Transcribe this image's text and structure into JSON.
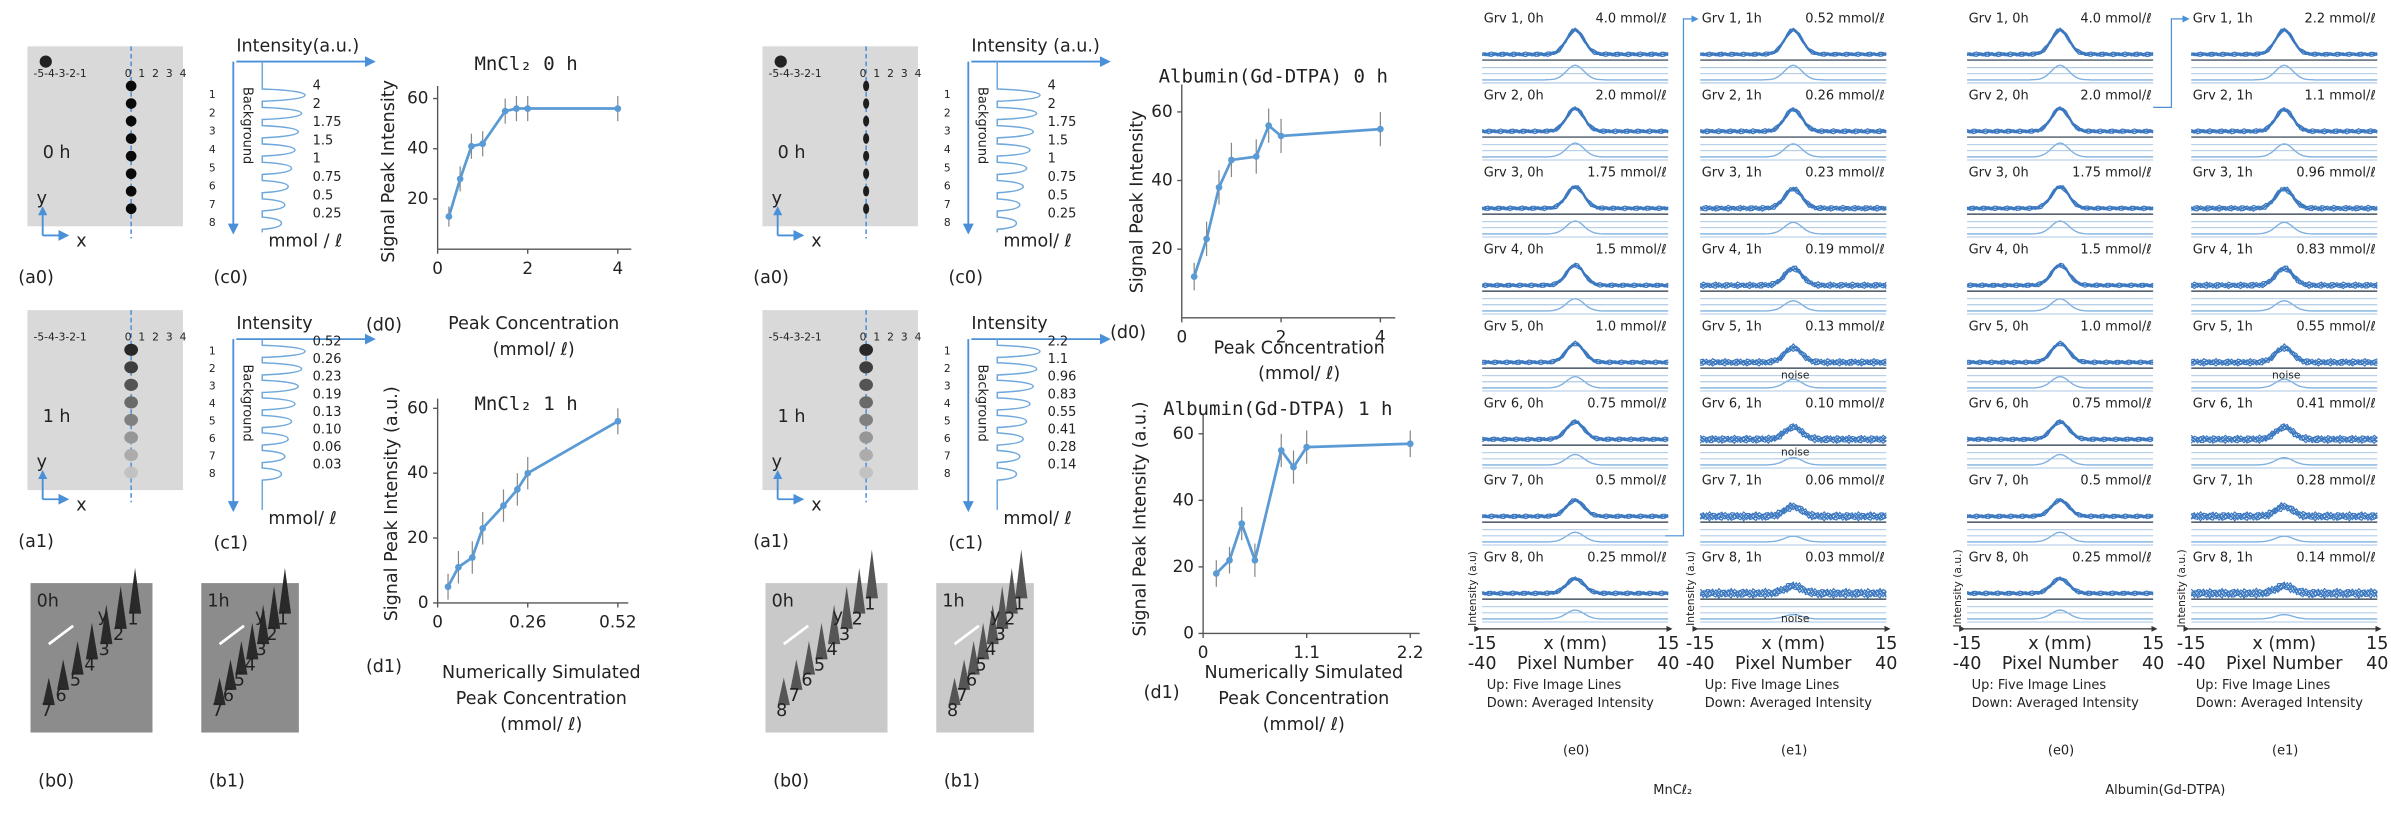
{
  "chart_data": [
    {
      "type": "line",
      "title": "MnCl₂  0 h",
      "panel": "(d0)",
      "ylabel": "Signal Peak Intensity",
      "xlabel": [
        "Peak Concentration",
        "(mmol/ ℓ)"
      ],
      "x": [
        0.25,
        0.5,
        0.75,
        1,
        1.5,
        1.75,
        2,
        4
      ],
      "values": [
        13,
        28,
        41,
        42,
        55,
        56,
        56,
        56
      ],
      "errors": [
        4,
        5,
        5,
        5,
        5,
        5,
        5,
        5
      ],
      "color": "#5b9bd5",
      "xlim": [
        0,
        4.3
      ],
      "ylim": [
        0,
        65
      ],
      "xticks": [
        0,
        2,
        4
      ],
      "yticks": [
        20,
        40,
        60
      ]
    },
    {
      "type": "line",
      "title": "MnCl₂ 1 h",
      "panel": "(d1)",
      "ylabel": "Signal Peak Intensity (a.u.)",
      "xlabel": [
        "Numerically Simulated",
        "Peak Concentration",
        "(mmol/ ℓ)"
      ],
      "x": [
        0.03,
        0.06,
        0.1,
        0.13,
        0.19,
        0.23,
        0.26,
        0.52
      ],
      "values": [
        5,
        11,
        14,
        23,
        30,
        35,
        40,
        56
      ],
      "errors": [
        4,
        5,
        5,
        5,
        5,
        5,
        5,
        4
      ],
      "color": "#5b9bd5",
      "xlim": [
        0,
        0.55
      ],
      "ylim": [
        0,
        63
      ],
      "xticks": [
        0,
        0.26,
        0.52
      ],
      "yticks": [
        0,
        20,
        40,
        60
      ]
    },
    {
      "type": "line",
      "title": "Albumin(Gd-DTPA) 0 h",
      "panel": "(d0)",
      "ylabel": "Signal Peak Intensity",
      "xlabel": [
        "Peak Concentration",
        "(mmol/ ℓ)"
      ],
      "x": [
        0.25,
        0.5,
        0.75,
        1,
        1.5,
        1.75,
        2,
        4
      ],
      "values": [
        12,
        23,
        38,
        46,
        47,
        56,
        53,
        55
      ],
      "errors": [
        4,
        5,
        5,
        5,
        5,
        5,
        5,
        5
      ],
      "color": "#5b9bd5",
      "xlim": [
        0,
        4.3
      ],
      "ylim": [
        0,
        68
      ],
      "xticks": [
        0,
        2,
        4
      ],
      "yticks": [
        20,
        40,
        60
      ]
    },
    {
      "type": "line",
      "title": "Albumin(Gd-DTPA) 1 h",
      "panel": "(d1)",
      "ylabel": "Signal Peak Intensity (a.u.)",
      "xlabel": [
        "Numerically Simulated",
        "Peak Concentration",
        "(mmol/ ℓ)"
      ],
      "x": [
        0.14,
        0.28,
        0.41,
        0.55,
        0.83,
        0.96,
        1.1,
        2.2
      ],
      "values": [
        18,
        22,
        33,
        22,
        55,
        50,
        56,
        57
      ],
      "errors": [
        4,
        4,
        5,
        5,
        5,
        5,
        5,
        4
      ],
      "color": "#5b9bd5",
      "xlim": [
        0,
        2.3
      ],
      "ylim": [
        0,
        66
      ],
      "xticks": [
        0,
        1.1,
        2.2
      ],
      "yticks": [
        0,
        20,
        40,
        60
      ]
    }
  ],
  "figures": [
    {
      "a": [
        {
          "ruler_left": "-5-4-3-2-1",
          "ruler_right": [
            "0",
            "1",
            "2",
            "3",
            "4"
          ],
          "time": "0  h",
          "y": "y",
          "x": "x",
          "panel": "(a0)"
        },
        {
          "ruler_left": "-5-4-3-2-1",
          "ruler_right": [
            "0",
            "1",
            "2",
            "3",
            "4"
          ],
          "time": "1  h",
          "y": "y",
          "x": "x",
          "panel": "(a1)"
        }
      ],
      "c": [
        {
          "title": "Intensity(a.u.)",
          "background": "Background",
          "rows": [
            "1",
            "2",
            "3",
            "4",
            "5",
            "6",
            "7",
            "8"
          ],
          "levels": [
            "4",
            "2",
            "1.75",
            "1.5",
            "1",
            "0.75",
            "0.5",
            "0.25"
          ],
          "unit": "mmol / ℓ",
          "panel": "(c0)"
        },
        {
          "title": "Intensity",
          "background": "Background",
          "rows": [
            "1",
            "2",
            "3",
            "4",
            "5",
            "6",
            "7",
            "8"
          ],
          "levels": [
            "0.52",
            "0.26",
            "0.23",
            "0.19",
            "0.13",
            "0.10",
            "0.06",
            "0.03"
          ],
          "unit": "mmol/ ℓ",
          "panel": "(c1)"
        }
      ],
      "b": [
        {
          "time": "0h",
          "y": "y",
          "numbers": [
            "7",
            "6",
            "5",
            "4",
            "3",
            "2",
            "1"
          ],
          "panel": "(b0)"
        },
        {
          "time": "1h",
          "y": "y",
          "numbers": [
            "7",
            "6",
            "5",
            "4",
            "3",
            "2",
            "1"
          ],
          "panel": "(b1)"
        }
      ]
    },
    {
      "a": [
        {
          "ruler_left": "-5-4-3-2-1",
          "ruler_right": [
            "0",
            "1",
            "2",
            "3",
            "4"
          ],
          "time": "0  h",
          "y": "y",
          "x": "x",
          "panel": "(a0)"
        },
        {
          "ruler_left": "-5-4-3-2-1",
          "ruler_right": [
            "0",
            "1",
            "2",
            "3",
            "4"
          ],
          "time": "1  h",
          "y": "y",
          "x": "x",
          "panel": "(a1)"
        }
      ],
      "c": [
        {
          "title": "Intensity (a.u.)",
          "background": "Background",
          "rows": [
            "1",
            "2",
            "3",
            "4",
            "5",
            "6",
            "7",
            "8"
          ],
          "levels": [
            "4",
            "2",
            "1.75",
            "1.5",
            "1",
            "0.75",
            "0.5",
            "0.25"
          ],
          "unit": "mmol/ ℓ",
          "panel": "(c0)"
        },
        {
          "title": "Intensity",
          "background": "Background",
          "rows": [
            "1",
            "2",
            "3",
            "4",
            "5",
            "6",
            "7",
            "8"
          ],
          "levels": [
            "2.2",
            "1.1",
            "0.96",
            "0.83",
            "0.55",
            "0.41",
            "0.28",
            "0.14"
          ],
          "unit": "mmol/ ℓ",
          "panel": "(c1)"
        }
      ],
      "b": [
        {
          "time": "0h",
          "y": "y",
          "numbers": [
            "8",
            "7",
            "6",
            "5",
            "4",
            "3",
            "2",
            "1"
          ],
          "panel": "(b0)"
        },
        {
          "time": "1h",
          "y": "y",
          "numbers": [
            "8",
            "7",
            "6",
            "5",
            "4",
            "3",
            "2",
            "1"
          ],
          "panel": "(b1)"
        }
      ]
    }
  ],
  "profiles": [
    {
      "caption": "MnCℓ₂",
      "columns": [
        {
          "panel": "(e0)",
          "ylabel": "Intensity (a.u)",
          "x_mm": [
            "-15",
            "x  (mm)",
            "15"
          ],
          "pixel": [
            "-40",
            "Pixel Number",
            "40"
          ],
          "notes": [
            "Up: Five Image Lines",
            "Down: Averaged Intensity"
          ],
          "rows": [
            {
              "name": "Grv 1, 0h",
              "conc": "4.0 mmol/ℓ"
            },
            {
              "name": "Grv 2, 0h",
              "conc": "2.0 mmol/ℓ"
            },
            {
              "name": "Grv 3, 0h",
              "conc": "1.75 mmol/ℓ"
            },
            {
              "name": "Grv 4, 0h",
              "conc": "1.5 mmol/ℓ"
            },
            {
              "name": "Grv 5, 0h",
              "conc": "1.0 mmol/ℓ"
            },
            {
              "name": "Grv 6, 0h",
              "conc": "0.75 mmol/ℓ"
            },
            {
              "name": "Grv 7, 0h",
              "conc": "0.5 mmol/ℓ"
            },
            {
              "name": "Grv 8, 0h",
              "conc": "0.25   mmol/ℓ"
            }
          ]
        },
        {
          "panel": "(e1)",
          "ylabel": "Intensity (a.u)",
          "x_mm": [
            "-15",
            "x  (mm)",
            "15"
          ],
          "pixel": [
            "-40",
            "Pixel Number",
            "40"
          ],
          "notes": [
            "Up: Five Image Lines",
            "Down: Averaged Intensity"
          ],
          "rows": [
            {
              "name": "Grv 1, 1h",
              "conc": "0.52 mmol/ℓ"
            },
            {
              "name": "Grv 2, 1h",
              "conc": "0.26 mmol/ℓ"
            },
            {
              "name": "Grv 3, 1h",
              "conc": "0.23 mmol/ℓ"
            },
            {
              "name": "Grv 4, 1h",
              "conc": "0.19 mmol/ℓ"
            },
            {
              "name": "Grv 5, 1h",
              "conc": "0.13 mmol/ℓ",
              "note": "noise"
            },
            {
              "name": "Grv 6, 1h",
              "conc": "0.10 mmol/ℓ",
              "note": "noise"
            },
            {
              "name": "Grv 7, 1h",
              "conc": "0.06 mmol/ℓ"
            },
            {
              "name": "Grv 8, 1h",
              "conc": "0.03 mmol/ℓ",
              "note": "noise"
            }
          ]
        }
      ]
    },
    {
      "caption": "Albumin(Gd-DTPA)",
      "columns": [
        {
          "panel": "(e0)",
          "ylabel": "Intensity (a.u.)",
          "x_mm": [
            "-15",
            "x  (mm)",
            "15"
          ],
          "pixel": [
            "-40",
            "Pixel Number",
            "40"
          ],
          "notes": [
            "Up: Five Image Lines",
            "Down: Averaged Intensity"
          ],
          "rows": [
            {
              "name": "Grv 1, 0h",
              "conc": "4.0 mmol/ℓ"
            },
            {
              "name": "Grv 2, 0h",
              "conc": "2.0 mmol/ℓ"
            },
            {
              "name": "Grv 3, 0h",
              "conc": "1.75 mmol/ℓ"
            },
            {
              "name": "Grv 4, 0h",
              "conc": "1.5 mmol/ℓ"
            },
            {
              "name": "Grv 5, 0h",
              "conc": "1.0 mmol/ℓ"
            },
            {
              "name": "Grv 6, 0h",
              "conc": "0.75 mmol/ℓ"
            },
            {
              "name": "Grv 7, 0h",
              "conc": "0.5 mmol/ℓ"
            },
            {
              "name": "Grv 8, 0h",
              "conc": "0.25  mmol/ℓ"
            }
          ]
        },
        {
          "panel": "(e1)",
          "ylabel": "Intensity (a.u.)",
          "x_mm": [
            "-15",
            "x  (mm)",
            "15"
          ],
          "pixel": [
            "-40",
            "Pixel Number",
            "40"
          ],
          "notes": [
            "Up: Five Image Lines",
            "Down: Averaged Intensity"
          ],
          "rows": [
            {
              "name": "Grv 1, 1h",
              "conc": "2.2 mmol/ℓ"
            },
            {
              "name": "Grv 2, 1h",
              "conc": "1.1 mmol/ℓ"
            },
            {
              "name": "Grv 3, 1h",
              "conc": "0.96 mmol/ℓ"
            },
            {
              "name": "Grv 4, 1h",
              "conc": "0.83 mmol/ℓ"
            },
            {
              "name": "Grv 5, 1h",
              "conc": "0.55 mmol/ℓ",
              "note": "noise"
            },
            {
              "name": "Grv 6, 1h",
              "conc": "0.41 mmol/ℓ"
            },
            {
              "name": "Grv 7, 1h",
              "conc": "0.28 mmol/ℓ"
            },
            {
              "name": "Grv 8, 1h",
              "conc": "0.14  mmol/ℓ"
            }
          ]
        }
      ]
    }
  ]
}
